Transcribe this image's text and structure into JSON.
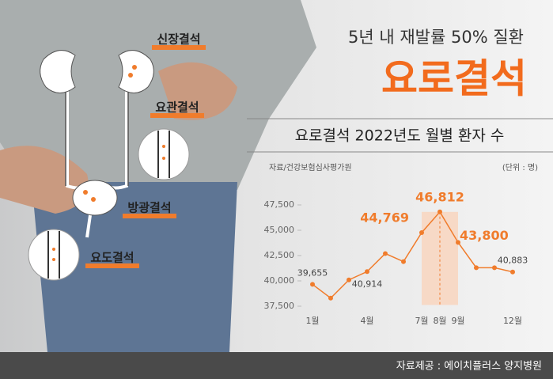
{
  "header": {
    "subtitle": "5년 내 재발률 50% 질환",
    "title": "요로결석"
  },
  "illustration": {
    "labels": [
      "신장결석",
      "요관결석",
      "방광결석",
      "요도결석"
    ]
  },
  "chart_data": {
    "type": "line",
    "title": "요로결석 2022년도 월별 환자 수",
    "source": "자료/건강보험심사평가원",
    "unit": "(단위 : 명)",
    "categories": [
      "1월",
      null,
      null,
      "4월",
      null,
      null,
      "7월",
      "8월",
      "9월",
      null,
      null,
      "12월"
    ],
    "values": [
      39655,
      38300,
      40100,
      40914,
      42700,
      41900,
      44769,
      46812,
      43800,
      41300,
      41300,
      40883
    ],
    "value_labels": [
      "39,655",
      null,
      null,
      "40,914",
      null,
      null,
      "44,769",
      "46,812",
      "43,800",
      null,
      null,
      "40,883"
    ],
    "color": "#f07c2c",
    "ylim": [
      37000,
      48000
    ],
    "yticks": [
      {
        "value": 37500,
        "label": "37,500"
      },
      {
        "value": 40000,
        "label": "40,000"
      },
      {
        "value": 42500,
        "label": "42,500"
      },
      {
        "value": 45000,
        "label": "45,000"
      },
      {
        "value": 47500,
        "label": "47,500"
      }
    ],
    "grid": false
  },
  "footer": {
    "credit": "자료제공 : 에이치플러스 양지병원"
  }
}
